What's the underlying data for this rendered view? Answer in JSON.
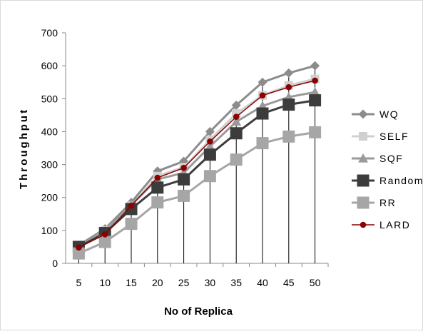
{
  "chart_data": {
    "type": "line",
    "xlabel": "No of Replica",
    "ylabel": "Throughput",
    "categories": [
      "5",
      "10",
      "15",
      "20",
      "25",
      "30",
      "35",
      "40",
      "45",
      "50"
    ],
    "ylim": [
      0,
      700
    ],
    "yticks": [
      "0",
      "100",
      "200",
      "300",
      "400",
      "500",
      "600",
      "700"
    ],
    "grid": false,
    "drop_lines": true,
    "legend_position": "right",
    "series": [
      {
        "name": "WQ",
        "marker": "diamond",
        "color": "#8c8c8c",
        "values": [
          55,
          105,
          185,
          280,
          310,
          400,
          480,
          550,
          578,
          600
        ]
      },
      {
        "name": "SELF",
        "marker": "square",
        "color": "#d0d0d0",
        "values": [
          50,
          100,
          175,
          265,
          292,
          375,
          455,
          510,
          540,
          560
        ]
      },
      {
        "name": "SQF",
        "marker": "triangle",
        "color": "#9a9a9a",
        "values": [
          52,
          98,
          178,
          255,
          275,
          355,
          430,
          478,
          505,
          520
        ]
      },
      {
        "name": "Random",
        "marker": "square-large",
        "color": "#3c3c3c",
        "values": [
          50,
          92,
          165,
          230,
          255,
          330,
          395,
          455,
          482,
          495
        ]
      },
      {
        "name": "RR",
        "marker": "square-large",
        "color": "#a6a6a6",
        "values": [
          30,
          65,
          120,
          185,
          205,
          265,
          315,
          365,
          385,
          398
        ]
      },
      {
        "name": "LARD",
        "marker": "circle",
        "color": "#8b0000",
        "values": [
          48,
          88,
          175,
          260,
          290,
          370,
          445,
          510,
          535,
          555
        ]
      }
    ]
  }
}
